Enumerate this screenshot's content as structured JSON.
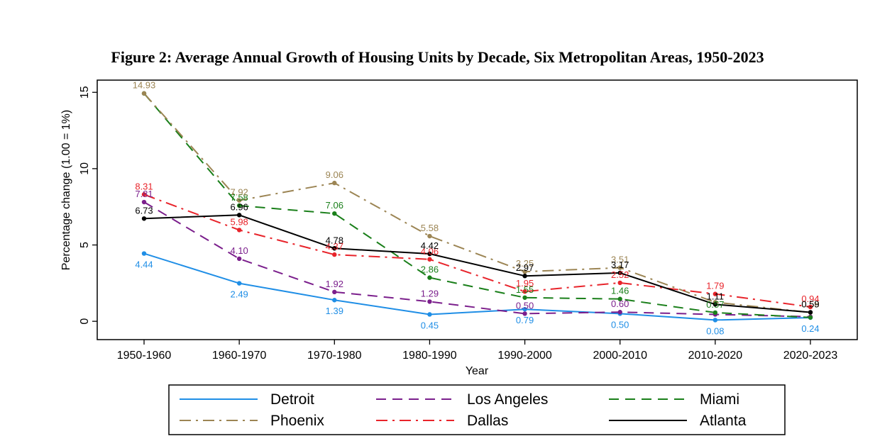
{
  "chart_data": {
    "type": "line",
    "title": "Figure 2: Average Annual Growth of Housing Units by Decade, Six Metropolitan Areas, 1950-2023",
    "xlabel": "Year",
    "ylabel": "Percentage change (1.00 = 1%)",
    "ylim": [
      -1.2,
      15.8
    ],
    "yticks": [
      0,
      5,
      10,
      15
    ],
    "grid": false,
    "legend_position": "bottom",
    "categories": [
      "1950-1960",
      "1960-1970",
      "1970-1980",
      "1980-1990",
      "1990-2000",
      "2000-2010",
      "2010-2020",
      "2020-2023"
    ],
    "series": [
      {
        "name": "Detroit",
        "color": "#1f8ee6",
        "dash": "solid",
        "values": [
          4.44,
          2.49,
          1.39,
          0.45,
          0.79,
          0.5,
          0.08,
          0.24
        ],
        "labels": [
          "4.44",
          "2.49",
          "1.39",
          "0.45",
          "0.79",
          "0.50",
          "0.08",
          "0.24"
        ]
      },
      {
        "name": "Los Angeles",
        "color": "#7b1f8c",
        "dash": "dash",
        "values": [
          7.81,
          4.1,
          1.92,
          1.29,
          0.5,
          0.6,
          0.45,
          0.3
        ],
        "labels": [
          "7.81",
          "4.10",
          "1.92",
          "1.29",
          "0.50",
          "0.60",
          "",
          ""
        ]
      },
      {
        "name": "Miami",
        "color": "#1a7f1a",
        "dash": "dash",
        "values": [
          14.93,
          7.58,
          7.06,
          2.86,
          1.55,
          1.46,
          0.57,
          0.25
        ],
        "labels": [
          "",
          "7.58",
          "7.06",
          "2.86",
          "1.55",
          "1.46",
          "0.57",
          ""
        ]
      },
      {
        "name": "Phoenix",
        "color": "#9c8554",
        "dash": "dashdot",
        "values": [
          14.93,
          7.92,
          9.06,
          5.58,
          3.25,
          3.51,
          1.25,
          0.58
        ],
        "labels": [
          "14.93",
          "7.92",
          "9.06",
          "5.58",
          "3.25",
          "3.51",
          "",
          "0.58"
        ]
      },
      {
        "name": "Dallas",
        "color": "#e8242b",
        "dash": "dashdot",
        "values": [
          8.31,
          5.98,
          4.37,
          4.06,
          1.95,
          2.52,
          1.79,
          0.94
        ],
        "labels": [
          "8.31",
          "5.98",
          "4.37",
          "4.06",
          "1.95",
          "2.52",
          "1.79",
          "0.94"
        ]
      },
      {
        "name": "Atlanta",
        "color": "#000000",
        "dash": "solid",
        "values": [
          6.73,
          6.96,
          4.78,
          4.42,
          2.97,
          3.17,
          1.11,
          0.59
        ],
        "labels": [
          "6.73",
          "6.96",
          "4.78",
          "4.42",
          "2.97",
          "3.17",
          "1.11",
          "0.59"
        ]
      }
    ]
  }
}
